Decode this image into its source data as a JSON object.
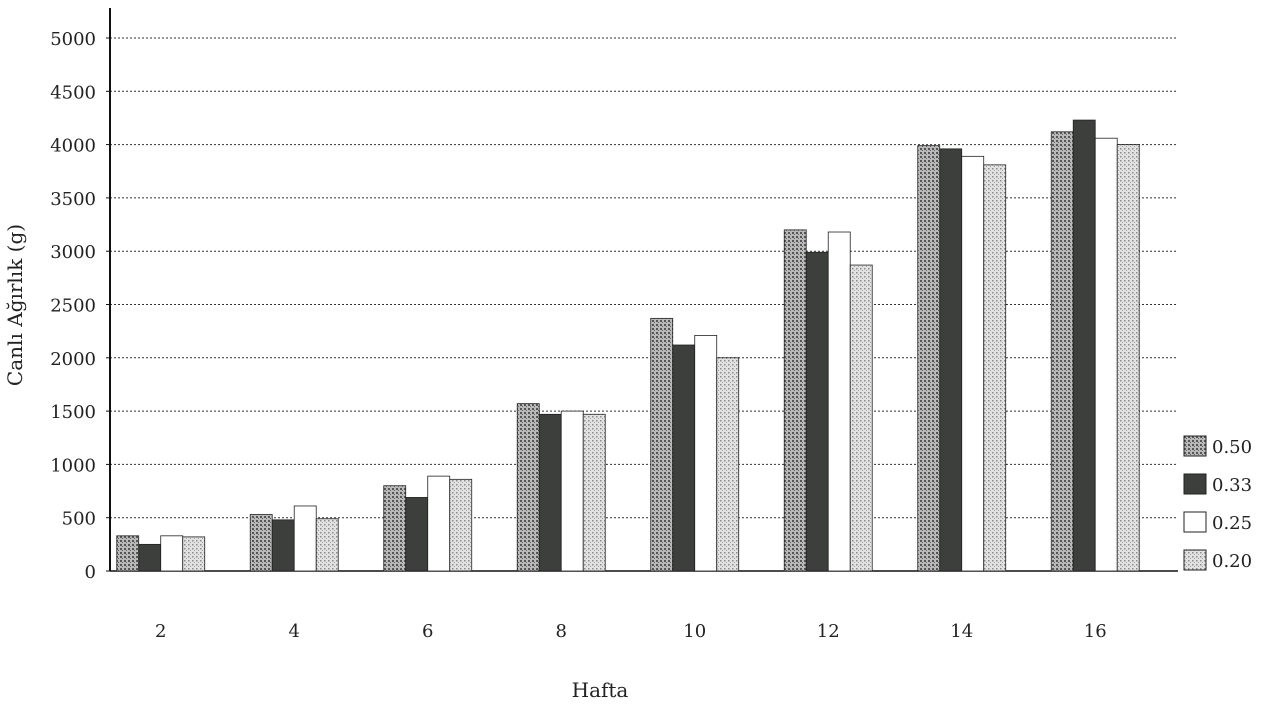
{
  "chart_data": {
    "type": "bar",
    "xlabel": "Hafta",
    "ylabel": "Canlı Ağırlık (g)",
    "ylim": [
      0,
      5000
    ],
    "yticks": [
      "0",
      "500",
      "1000",
      "1500",
      "2000",
      "2500",
      "3000",
      "3500",
      "4000",
      "4500",
      "5000"
    ],
    "categories": [
      "2",
      "4",
      "6",
      "8",
      "10",
      "12",
      "14",
      "16"
    ],
    "grid": true,
    "legend_position": "right",
    "series": [
      {
        "name": "0.50",
        "pattern": "dots-medium",
        "color": "#8a8a8a",
        "values": [
          330,
          530,
          800,
          1570,
          2370,
          3200,
          3990,
          4120
        ]
      },
      {
        "name": "0.33",
        "pattern": "solid-dark",
        "color": "#3c3f3c",
        "values": [
          250,
          480,
          690,
          1470,
          2120,
          2990,
          3960,
          4230
        ]
      },
      {
        "name": "0.25",
        "pattern": "white",
        "color": "#ffffff",
        "values": [
          330,
          610,
          890,
          1500,
          2210,
          3180,
          3890,
          4060
        ]
      },
      {
        "name": "0.20",
        "pattern": "dots-light",
        "color": "#c4c4c4",
        "values": [
          320,
          490,
          860,
          1470,
          2000,
          2870,
          3810,
          4000
        ]
      }
    ]
  }
}
